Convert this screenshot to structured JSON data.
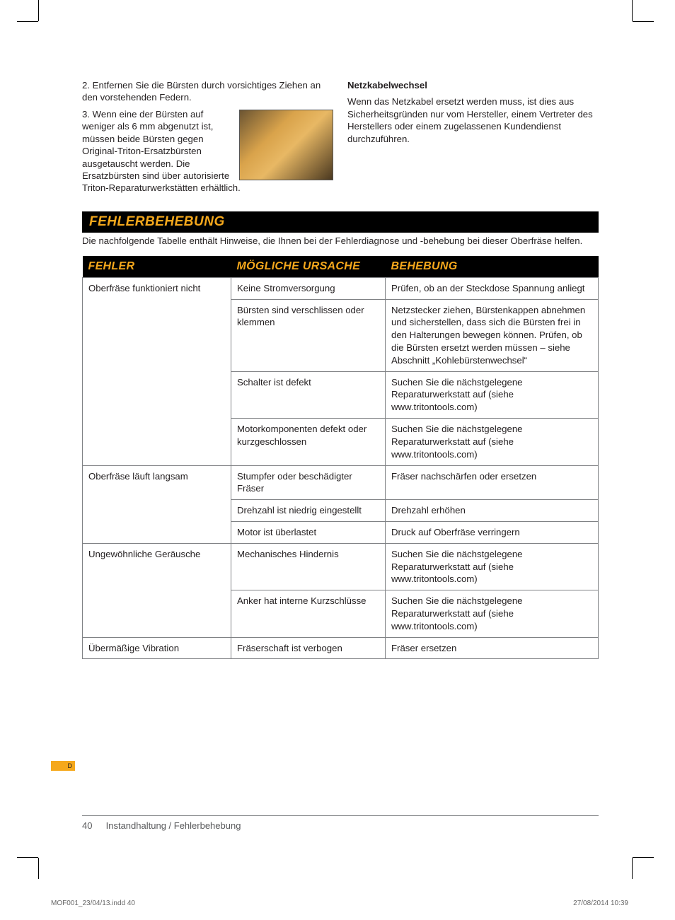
{
  "crop_marks": true,
  "left_col": {
    "para1": "2. Entfernen Sie die Bürsten durch vorsichtiges Ziehen an den vorstehenden Federn.",
    "para2_lead": "3. Wenn eine der Bürsten auf weniger als 6 mm abgenutzt ist, müssen beide Bürsten gegen Original-Triton-Ersatzbürsten ausgetauscht werden. Die Ersatzbürsten sind über autorisierte Triton-Reparaturwerkstätten erhältlich."
  },
  "right_col": {
    "heading": "Netzkabelwechsel",
    "para": "Wenn das Netzkabel ersetzt werden muss, ist dies aus Sicherheitsgründen nur vom Hersteller, einem Vertreter des Herstellers oder einem zugelassenen Kundendienst durchzuführen."
  },
  "section_title": "FEHLERBEHEBUNG",
  "section_intro": "Die nachfolgende Tabelle enthält Hinweise, die Ihnen bei der Fehlerdiagnose und -behebung bei dieser Oberfräse helfen.",
  "table": {
    "headers": [
      "FEHLER",
      "MÖGLICHE URSACHE",
      "BEHEBUNG"
    ],
    "groups": [
      {
        "fault": "Oberfräse funktioniert nicht",
        "rows": [
          {
            "cause": "Keine Stromversorgung",
            "fix": "Prüfen, ob an der Steckdose Spannung anliegt"
          },
          {
            "cause": "Bürsten sind verschlissen oder klemmen",
            "fix": "Netzstecker ziehen, Bürstenkappen abnehmen und sicherstellen, dass sich die Bürsten frei in den Halterungen bewegen können. Prüfen, ob die Bürsten ersetzt werden müssen – siehe Abschnitt „Kohlebürstenwechsel“"
          },
          {
            "cause": "Schalter ist defekt",
            "fix": "Suchen Sie die nächstgelegene Reparaturwerkstatt auf (siehe www.tritontools.com)"
          },
          {
            "cause": "Motorkomponenten defekt oder kurzgeschlossen",
            "fix": "Suchen Sie die nächstgelegene Reparaturwerkstatt auf (siehe www.tritontools.com)"
          }
        ]
      },
      {
        "fault": "Oberfräse läuft langsam",
        "rows": [
          {
            "cause": "Stumpfer oder beschädigter Fräser",
            "fix": "Fräser nachschärfen oder ersetzen"
          },
          {
            "cause": "Drehzahl ist niedrig eingestellt",
            "fix": "Drehzahl erhöhen"
          },
          {
            "cause": "Motor ist überlastet",
            "fix": "Druck auf Oberfräse verringern"
          }
        ]
      },
      {
        "fault": "Ungewöhnliche Geräusche",
        "rows": [
          {
            "cause": "Mechanisches Hindernis",
            "fix": "Suchen Sie die nächstgelegene Reparaturwerkstatt auf (siehe www.tritontools.com)"
          },
          {
            "cause": "Anker hat interne Kurzschlüsse",
            "fix": "Suchen Sie die nächstgelegene Reparaturwerkstatt auf (siehe www.tritontools.com)"
          }
        ]
      },
      {
        "fault": "Übermäßige Vibration",
        "rows": [
          {
            "cause": "Fräserschaft ist verbogen",
            "fix": "Fräser ersetzen"
          }
        ]
      }
    ]
  },
  "lang_tab": "D",
  "footer": {
    "page_number": "40",
    "section": "Instandhaltung / Fehlerbehebung"
  },
  "slug": {
    "file": "MOF001_23/04/13.indd   40",
    "timestamp": "27/08/2014   10:39"
  },
  "colors": {
    "accent": "#f5a81c",
    "black": "#000000",
    "rule": "#808285",
    "text": "#231f20"
  }
}
